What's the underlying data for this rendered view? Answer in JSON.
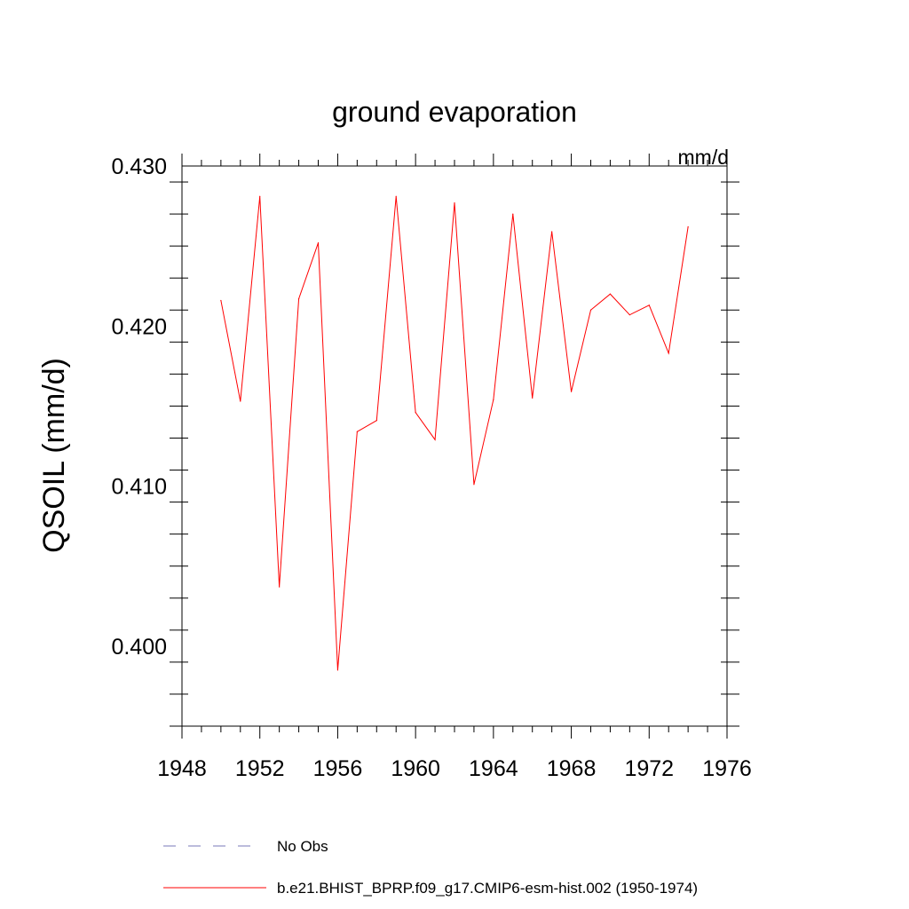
{
  "chart_data": {
    "type": "line",
    "title": "ground evaporation",
    "units": "mm/d",
    "xlabel": "",
    "ylabel": "QSOIL  (mm/d)",
    "xlim": [
      1948,
      1976
    ],
    "ylim": [
      0.395,
      0.43
    ],
    "x_ticks": [
      1948,
      1952,
      1956,
      1960,
      1964,
      1968,
      1972,
      1976
    ],
    "x_tick_labels": [
      "1948",
      "1952",
      "1956",
      "1960",
      "1964",
      "1968",
      "1972",
      "1976"
    ],
    "y_ticks": [
      0.4,
      0.41,
      0.42,
      0.43
    ],
    "y_tick_labels": [
      "0.400",
      "0.410",
      "0.420",
      "0.430"
    ],
    "grid": false,
    "series": [
      {
        "name": "b.e21.BHIST_BPRP.f09_g17.CMIP6-esm-hist.002 (1950-1974)",
        "color": "#ff0000",
        "style": "solid",
        "x": [
          1950,
          1951,
          1952,
          1953,
          1954,
          1955,
          1956,
          1957,
          1958,
          1959,
          1960,
          1961,
          1962,
          1963,
          1964,
          1965,
          1966,
          1967,
          1968,
          1969,
          1970,
          1971,
          1972,
          1973,
          1974
        ],
        "values": [
          0.4216,
          0.4153,
          0.4281,
          0.4037,
          0.4217,
          0.4252,
          0.3985,
          0.4134,
          0.4141,
          0.4281,
          0.4146,
          0.4129,
          0.4277,
          0.4101,
          0.4154,
          0.427,
          0.4155,
          0.4259,
          0.4159,
          0.421,
          0.422,
          0.4207,
          0.4213,
          0.4183,
          0.4262
        ]
      }
    ],
    "legend": [
      {
        "label": "No Obs",
        "color": "#7a7ab8",
        "style": "dashed"
      },
      {
        "label": "b.e21.BHIST_BPRP.f09_g17.CMIP6-esm-hist.002 (1950-1974)",
        "color": "#ff0000",
        "style": "solid"
      }
    ]
  }
}
